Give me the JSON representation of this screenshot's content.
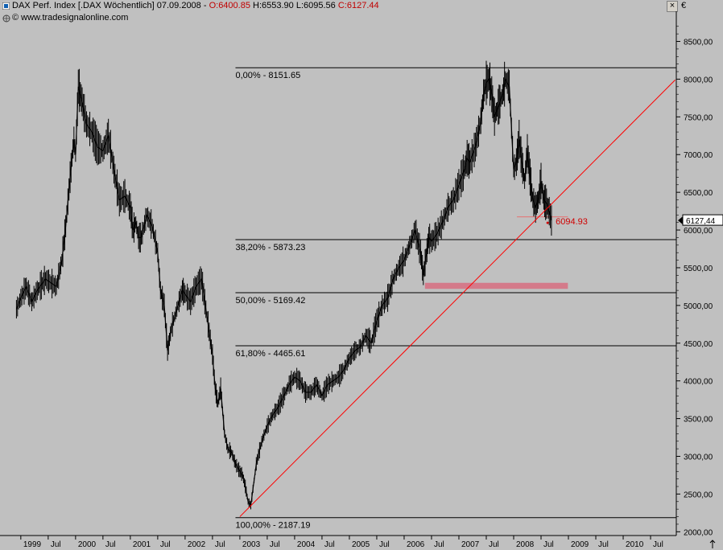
{
  "header": {
    "title": "DAX Perf. Index [.DAX  Wöchentlich] 07.09.2008 - ",
    "open": "O:6400.85",
    "high": "H:6553.90",
    "low": "L:6095.56",
    "close": "C:6127.44",
    "watermark": "© www.tradesignalonline.com",
    "close_button": "×",
    "currency": "€"
  },
  "chart_data": {
    "type": "line",
    "title": "DAX Perf. Index [.DAX  Wöchentlich] 07.09.2008",
    "x_range": [
      "1998-12",
      "2010-12"
    ],
    "ylim": [
      1950,
      8900
    ],
    "y_ticks": [
      "2000,00",
      "2500,00",
      "3000,00",
      "3500,00",
      "4000,00",
      "4500,00",
      "5000,00",
      "5500,00",
      "6000,00",
      "6500,00",
      "7000,00",
      "7500,00",
      "8000,00",
      "8500,00"
    ],
    "y_tick_values": [
      2000,
      2500,
      3000,
      3500,
      4000,
      4500,
      5000,
      5500,
      6000,
      6500,
      7000,
      7500,
      8000,
      8500
    ],
    "x_ticks": [
      {
        "label": "1999",
        "t": 1999.0
      },
      {
        "label": "Jul",
        "t": 1999.5
      },
      {
        "label": "2000",
        "t": 2000.0
      },
      {
        "label": "Jul",
        "t": 2000.5
      },
      {
        "label": "2001",
        "t": 2001.0
      },
      {
        "label": "Jul",
        "t": 2001.5
      },
      {
        "label": "2002",
        "t": 2002.0
      },
      {
        "label": "Jul",
        "t": 2002.5
      },
      {
        "label": "2003",
        "t": 2003.0
      },
      {
        "label": "Jul",
        "t": 2003.5
      },
      {
        "label": "2004",
        "t": 2004.0
      },
      {
        "label": "Jul",
        "t": 2004.5
      },
      {
        "label": "2005",
        "t": 2005.0
      },
      {
        "label": "Jul",
        "t": 2005.5
      },
      {
        "label": "2006",
        "t": 2006.0
      },
      {
        "label": "Jul",
        "t": 2006.5
      },
      {
        "label": "2007",
        "t": 2007.0
      },
      {
        "label": "Jul",
        "t": 2007.5
      },
      {
        "label": "2008",
        "t": 2008.0
      },
      {
        "label": "Jul",
        "t": 2008.5
      },
      {
        "label": "2009",
        "t": 2009.0
      },
      {
        "label": "Jul",
        "t": 2009.5
      },
      {
        "label": "2010",
        "t": 2010.0
      },
      {
        "label": "Jul",
        "t": 2010.5
      }
    ],
    "series": [
      {
        "x": [
          1998.92,
          1999.0,
          1999.1,
          1999.2,
          1999.3,
          1999.45,
          1999.55,
          1999.65,
          1999.75,
          1999.82,
          1999.9,
          1999.97,
          2000.0,
          2000.05,
          2000.12,
          2000.2,
          2000.3,
          2000.4,
          2000.5,
          2000.6,
          2000.7,
          2000.8,
          2000.9,
          2001.0,
          2001.05,
          2001.1,
          2001.15,
          2001.2,
          2001.3,
          2001.4,
          2001.5,
          2001.55,
          2001.62,
          2001.68,
          2001.75,
          2001.85,
          2001.95,
          2002.0,
          2002.1,
          2002.2,
          2002.3,
          2002.4,
          2002.5,
          2002.55,
          2002.6,
          2002.65,
          2002.72,
          2002.78,
          2002.85,
          2002.92,
          2003.0,
          2003.05,
          2003.1,
          2003.15,
          2003.2,
          2003.3,
          2003.4,
          2003.5,
          2003.6,
          2003.7,
          2003.8,
          2003.9,
          2004.0,
          2004.1,
          2004.2,
          2004.3,
          2004.4,
          2004.5,
          2004.6,
          2004.7,
          2004.8,
          2004.9,
          2005.0,
          2005.1,
          2005.2,
          2005.3,
          2005.4,
          2005.5,
          2005.6,
          2005.7,
          2005.8,
          2005.9,
          2006.0,
          2006.1,
          2006.2,
          2006.3,
          2006.35,
          2006.4,
          2006.45,
          2006.5,
          2006.6,
          2006.7,
          2006.8,
          2006.9,
          2007.0,
          2007.1,
          2007.15,
          2007.2,
          2007.3,
          2007.4,
          2007.45,
          2007.5,
          2007.55,
          2007.6,
          2007.65,
          2007.7,
          2007.75,
          2007.8,
          2007.85,
          2007.92,
          2008.0,
          2008.05,
          2008.1,
          2008.15,
          2008.2,
          2008.25,
          2008.3,
          2008.35,
          2008.4,
          2008.45,
          2008.5,
          2008.55,
          2008.6,
          2008.65,
          2008.69
        ],
        "y": [
          4950,
          5100,
          5250,
          5050,
          5200,
          5350,
          5300,
          5250,
          5600,
          6050,
          6700,
          7200,
          7000,
          7900,
          7700,
          7400,
          7300,
          7100,
          7050,
          7250,
          6800,
          6400,
          6450,
          6300,
          6000,
          6100,
          5900,
          5900,
          6200,
          6050,
          5700,
          5200,
          5000,
          4400,
          4700,
          4950,
          5200,
          5150,
          5050,
          5250,
          5350,
          4850,
          4350,
          3900,
          3700,
          3900,
          3300,
          3100,
          3050,
          2900,
          2800,
          2750,
          2600,
          2400,
          2350,
          2900,
          3200,
          3400,
          3550,
          3650,
          3800,
          3950,
          4050,
          4000,
          3850,
          3850,
          3950,
          3800,
          3950,
          4000,
          4050,
          4150,
          4300,
          4400,
          4450,
          4600,
          4500,
          4800,
          5000,
          5100,
          5350,
          5500,
          5600,
          5800,
          6000,
          5700,
          5400,
          5650,
          5900,
          5850,
          5950,
          6100,
          6300,
          6400,
          6600,
          6800,
          6950,
          6900,
          7100,
          7450,
          7800,
          7950,
          8000,
          7800,
          7500,
          7600,
          7700,
          7800,
          8000,
          7900,
          6800,
          6900,
          7200,
          6900,
          6650,
          7050,
          6700,
          6400,
          6300,
          6400,
          6650,
          6400,
          6350,
          6250,
          6127
        ]
      }
    ],
    "fib_levels": [
      {
        "label": "0,00% - 8151.65",
        "value": 8151.65
      },
      {
        "label": "38,20% - 5873.23",
        "value": 5873.23
      },
      {
        "label": "50,00% - 5169.42",
        "value": 5169.42
      },
      {
        "label": "61,80% - 4465.61",
        "value": 4465.61
      },
      {
        "label": "100,00% - 2187.19",
        "value": 2187.19
      }
    ],
    "fib_start_t": 2002.92,
    "trendline": {
      "from": [
        2003.0,
        2200
      ],
      "to": [
        2010.95,
        7990
      ],
      "color": "#ff0000"
    },
    "support_zone": {
      "from_t": 2006.38,
      "to_t": 2008.99,
      "low": 5220,
      "high": 5300,
      "color": "#d47a8a"
    },
    "support_line": {
      "from_t": 2008.06,
      "to_t": 2008.99,
      "value": 6175,
      "color": "#e08080"
    },
    "annotation": {
      "label": "6094.93",
      "t": 2008.62,
      "value": 6094.93,
      "color": "#d00000"
    },
    "last_price": {
      "label": "6127,44",
      "value": 6127.44
    },
    "colors": {
      "price": "#000000",
      "grid": "#000000",
      "trend": "#ff0000"
    }
  }
}
